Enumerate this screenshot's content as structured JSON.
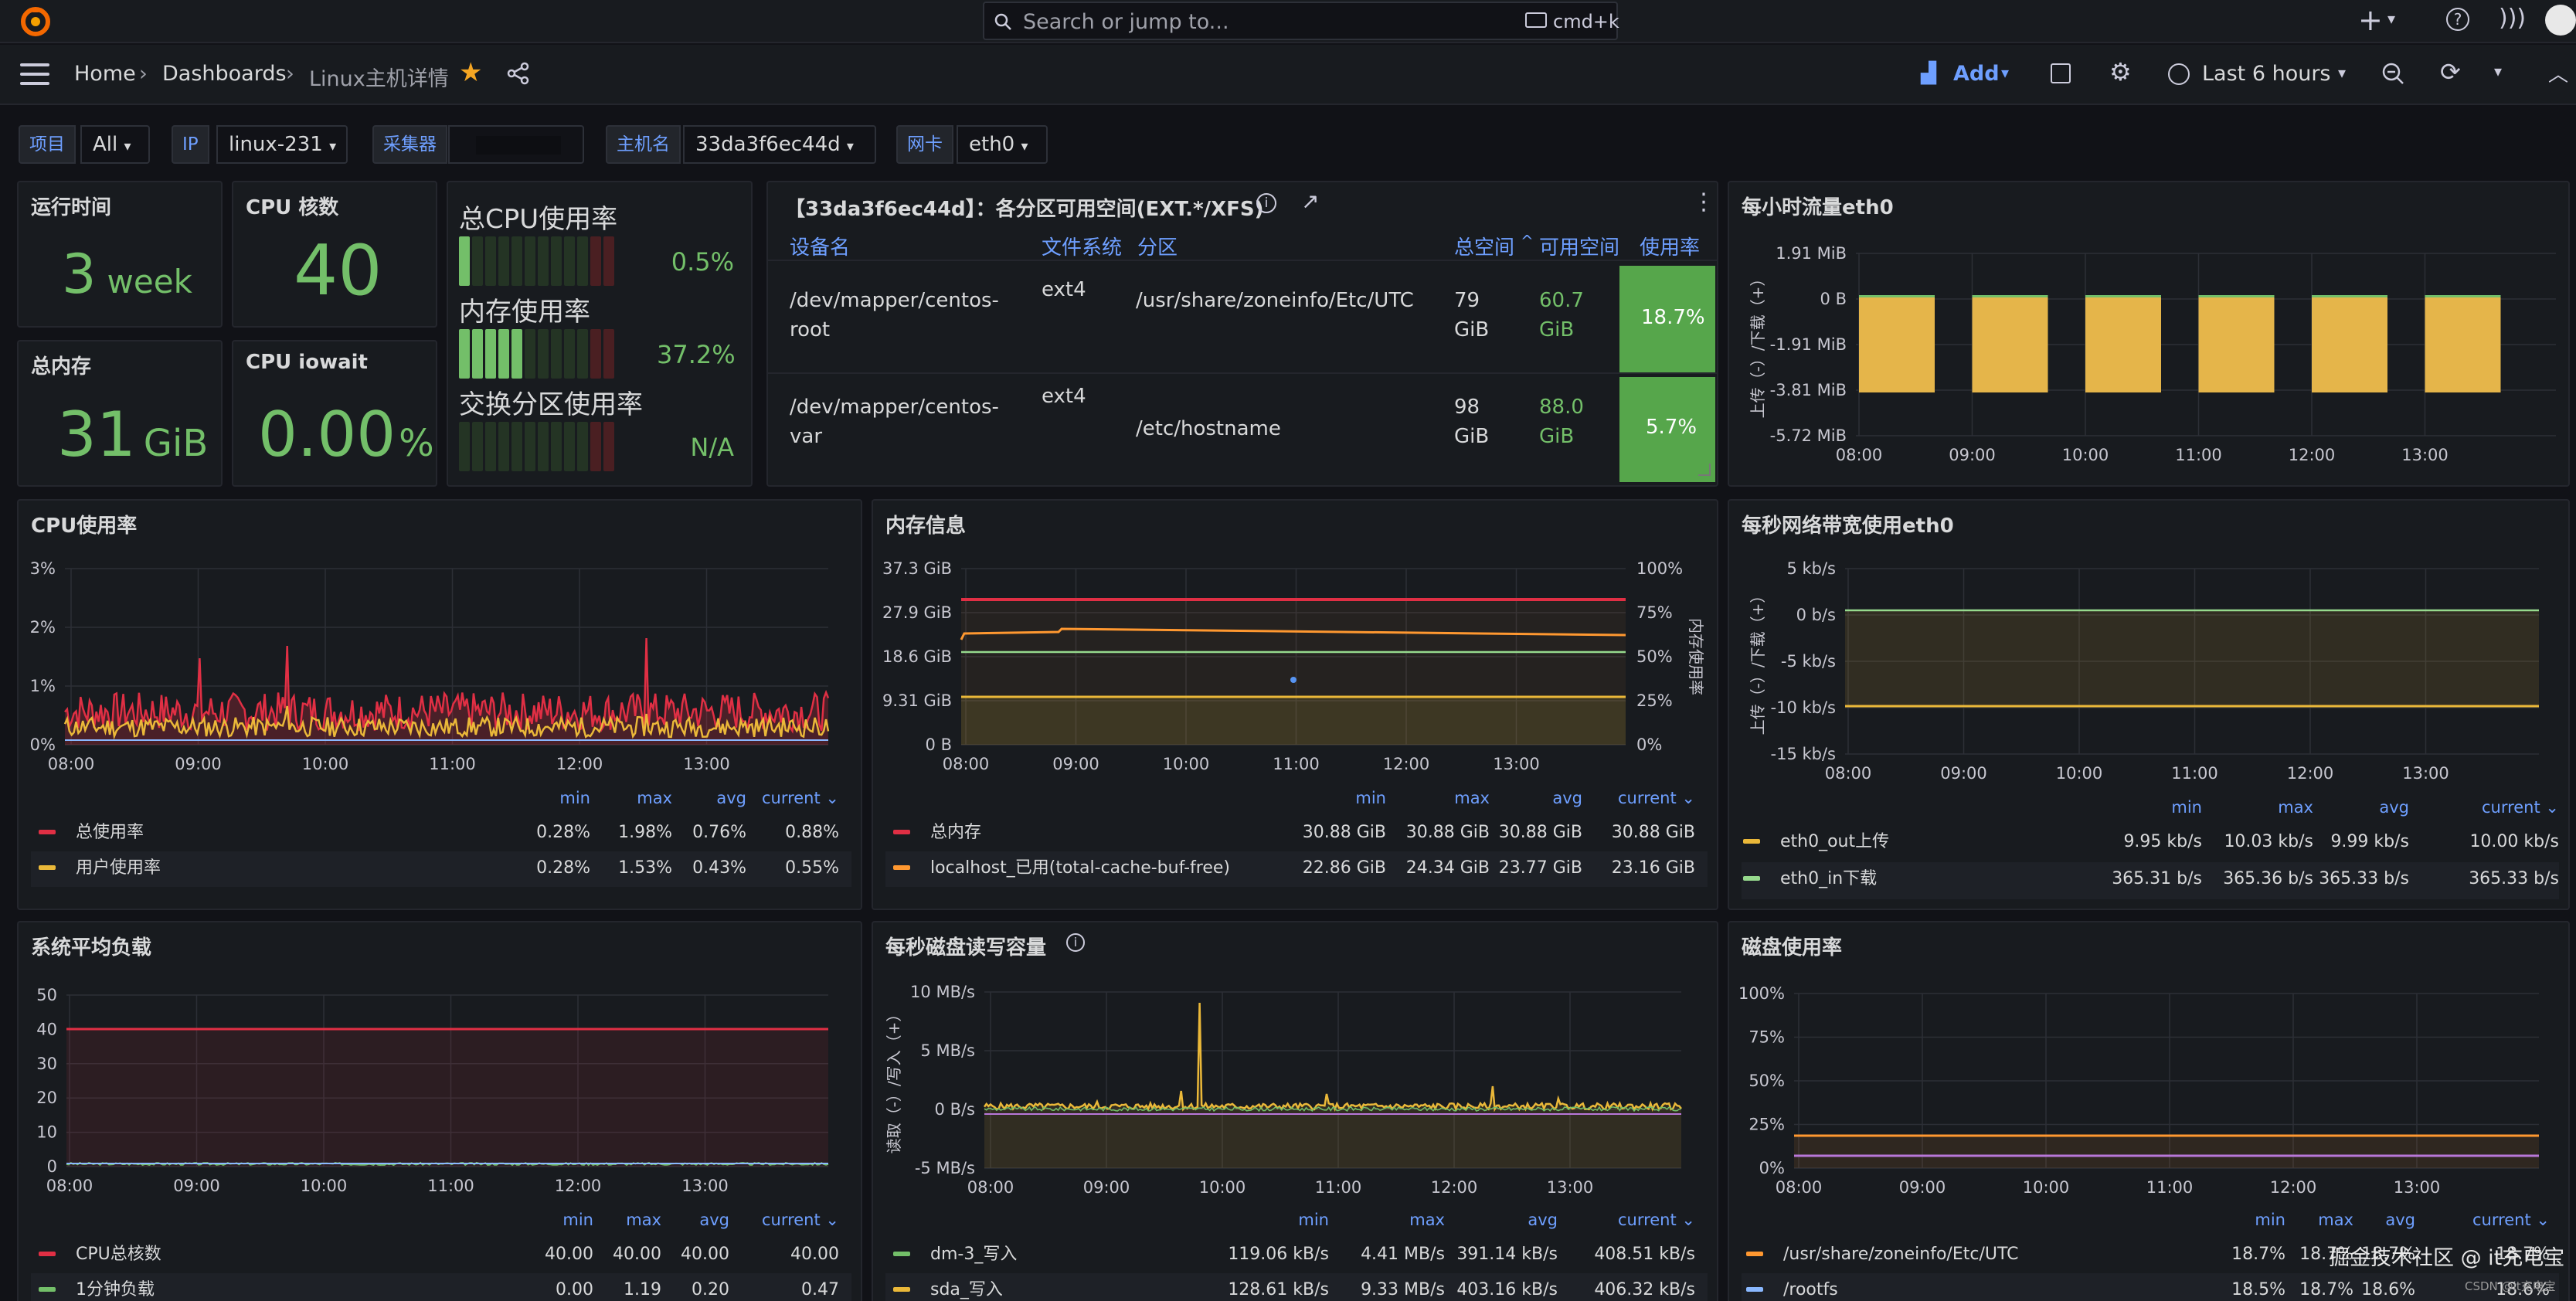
{
  "topbar": {
    "search_placeholder": "Search or jump to...",
    "shortcut": "cmd+k"
  },
  "nav": {
    "breadcrumb": [
      "Home",
      "Dashboards",
      "Linux主机详情"
    ],
    "add_label": "Add",
    "time_range": "Last 6 hours"
  },
  "variables": [
    {
      "label": "项目",
      "value": "All"
    },
    {
      "label": "IP",
      "value": "linux-231"
    },
    {
      "label": "采集器",
      "value": ""
    },
    {
      "label": "主机名",
      "value": "33da3f6ec44d"
    },
    {
      "label": "网卡",
      "value": "eth0"
    }
  ],
  "stats": {
    "uptime": {
      "title": "运行时间",
      "value": "3",
      "unit": "week"
    },
    "cpu_cores": {
      "title": "CPU 核数",
      "value": "40"
    },
    "total_mem": {
      "title": "总内存",
      "value": "31",
      "unit": "GiB"
    },
    "iowait": {
      "title": "CPU iowait",
      "value": "0.00",
      "unit": "%"
    }
  },
  "bargauge": {
    "items": [
      {
        "title": "总CPU使用率",
        "value": "0.5%",
        "filled": 1
      },
      {
        "title": "内存使用率",
        "value": "37.2%",
        "filled": 5
      },
      {
        "title": "交换分区使用率",
        "value": "N/A",
        "filled": 0
      }
    ]
  },
  "disk_table": {
    "title": "【33da3f6ec44d】：各分区可用空间(EXT.*/XFS)",
    "headers": [
      "设备名",
      "文件系统",
      "分区",
      "总空间",
      "可用空间",
      "使用率"
    ],
    "rows": [
      {
        "device1": "/dev/mapper/centos-",
        "device2": "root",
        "fs": "ext4",
        "mount": "/usr/share/zoneinfo/Etc/UTC",
        "total1": "79",
        "total2": "GiB",
        "avail1": "60.7",
        "avail2": "GiB",
        "usage": "18.7%"
      },
      {
        "device1": "/dev/mapper/centos-",
        "device2": "var",
        "fs": "ext4",
        "mount": "/etc/hostname",
        "total1": "98",
        "total2": "GiB",
        "avail1": "88.0",
        "avail2": "GiB",
        "usage": "5.7%"
      }
    ]
  },
  "hourly_traffic": {
    "title": "每小时流量eth0",
    "y_ticks": [
      "1.91 MiB",
      "0 B",
      "-1.91 MiB",
      "-3.81 MiB",
      "-5.72 MiB"
    ],
    "ylabel": "上传（-）/下载（+）",
    "x_ticks": [
      "08:00",
      "09:00",
      "10:00",
      "11:00",
      "12:00",
      "13:00"
    ]
  },
  "cpu_usage": {
    "title": "CPU使用率",
    "y_ticks": [
      "3%",
      "2%",
      "1%",
      "0%"
    ],
    "x_ticks": [
      "08:00",
      "09:00",
      "10:00",
      "11:00",
      "12:00",
      "13:00"
    ],
    "legend_headers": [
      "min",
      "max",
      "avg",
      "current"
    ],
    "legend": [
      {
        "name": "总使用率",
        "min": "0.28%",
        "max": "1.98%",
        "avg": "0.76%",
        "current": "0.88%",
        "color": "#e02f44"
      },
      {
        "name": "用户使用率",
        "min": "0.28%",
        "max": "1.53%",
        "avg": "0.43%",
        "current": "0.55%",
        "color": "#eab839"
      }
    ]
  },
  "memory": {
    "title": "内存信息",
    "y_ticks": [
      "37.3 GiB",
      "27.9 GiB",
      "18.6 GiB",
      "9.31 GiB",
      "0 B"
    ],
    "y2_ticks": [
      "100%",
      "75%",
      "50%",
      "25%",
      "0%"
    ],
    "y2label": "内存使用率",
    "x_ticks": [
      "08:00",
      "09:00",
      "10:00",
      "11:00",
      "12:00",
      "13:00"
    ],
    "legend_headers": [
      "min",
      "max",
      "avg",
      "current"
    ],
    "legend": [
      {
        "name": "总内存",
        "min": "30.88 GiB",
        "max": "30.88 GiB",
        "avg": "30.88 GiB",
        "current": "30.88 GiB",
        "color": "#e02f44"
      },
      {
        "name": "localhost_已用(total-cache-buf-free)",
        "min": "22.86 GiB",
        "max": "24.34 GiB",
        "avg": "23.77 GiB",
        "current": "23.16 GiB",
        "color": "#ff9830"
      }
    ]
  },
  "bandwidth": {
    "title": "每秒网络带宽使用eth0",
    "y_ticks": [
      "5 kb/s",
      "0 b/s",
      "-5 kb/s",
      "-10 kb/s",
      "-15 kb/s"
    ],
    "ylabel": "上传（-）/下载（+）",
    "x_ticks": [
      "08:00",
      "09:00",
      "10:00",
      "11:00",
      "12:00",
      "13:00"
    ],
    "legend_headers": [
      "min",
      "max",
      "avg",
      "current"
    ],
    "legend": [
      {
        "name": "eth0_out上传",
        "min": "9.95 kb/s",
        "max": "10.03 kb/s",
        "avg": "9.99 kb/s",
        "current": "10.00 kb/s",
        "color": "#eab839"
      },
      {
        "name": "eth0_in下载",
        "min": "365.31 b/s",
        "max": "365.36 b/s",
        "avg": "365.33 b/s",
        "current": "365.33 b/s",
        "color": "#96d98d"
      }
    ]
  },
  "load": {
    "title": "系统平均负载",
    "y_ticks": [
      "50",
      "40",
      "30",
      "20",
      "10",
      "0"
    ],
    "x_ticks": [
      "08:00",
      "09:00",
      "10:00",
      "11:00",
      "12:00",
      "13:00"
    ],
    "legend_headers": [
      "min",
      "max",
      "avg",
      "current"
    ],
    "legend": [
      {
        "name": "CPU总核数",
        "min": "40.00",
        "max": "40.00",
        "avg": "40.00",
        "current": "40.00",
        "color": "#e02f44"
      },
      {
        "name": "1分钟负载",
        "min": "0.00",
        "max": "1.19",
        "avg": "0.20",
        "current": "0.47",
        "color": "#73bf69"
      }
    ]
  },
  "disk_io": {
    "title": "每秒磁盘读写容量",
    "y_ticks": [
      "10 MB/s",
      "5 MB/s",
      "0 B/s",
      "-5 MB/s"
    ],
    "ylabel": "读取（-）/写入（+）",
    "x_ticks": [
      "08:00",
      "09:00",
      "10:00",
      "11:00",
      "12:00",
      "13:00"
    ],
    "legend_headers": [
      "min",
      "max",
      "avg",
      "current"
    ],
    "legend": [
      {
        "name": "dm-3_写入",
        "min": "119.06 kB/s",
        "max": "4.41 MB/s",
        "avg": "391.14 kB/s",
        "current": "408.51 kB/s",
        "color": "#73bf69"
      },
      {
        "name": "sda_写入",
        "min": "128.61 kB/s",
        "max": "9.33 MB/s",
        "avg": "403.16 kB/s",
        "current": "406.32 kB/s",
        "color": "#eab839"
      }
    ]
  },
  "disk_usage": {
    "title": "磁盘使用率",
    "y_ticks": [
      "100%",
      "75%",
      "50%",
      "25%",
      "0%"
    ],
    "x_ticks": [
      "08:00",
      "09:00",
      "10:00",
      "11:00",
      "12:00",
      "13:00"
    ],
    "legend_headers": [
      "min",
      "max",
      "avg",
      "current"
    ],
    "legend": [
      {
        "name": "/usr/share/zoneinfo/Etc/UTC",
        "min": "18.7%",
        "max": "18.7%",
        "avg": "18.7%",
        "current": "18.7%",
        "color": "#ff9830"
      },
      {
        "name": "/rootfs",
        "min": "18.5%",
        "max": "18.7%",
        "avg": "18.6%",
        "current": "18.6%",
        "color": "#8ab8ff"
      }
    ]
  },
  "watermark": "掘金技术社区 @ it充电宝",
  "watermark2": "CSDN @it充电宝"
}
